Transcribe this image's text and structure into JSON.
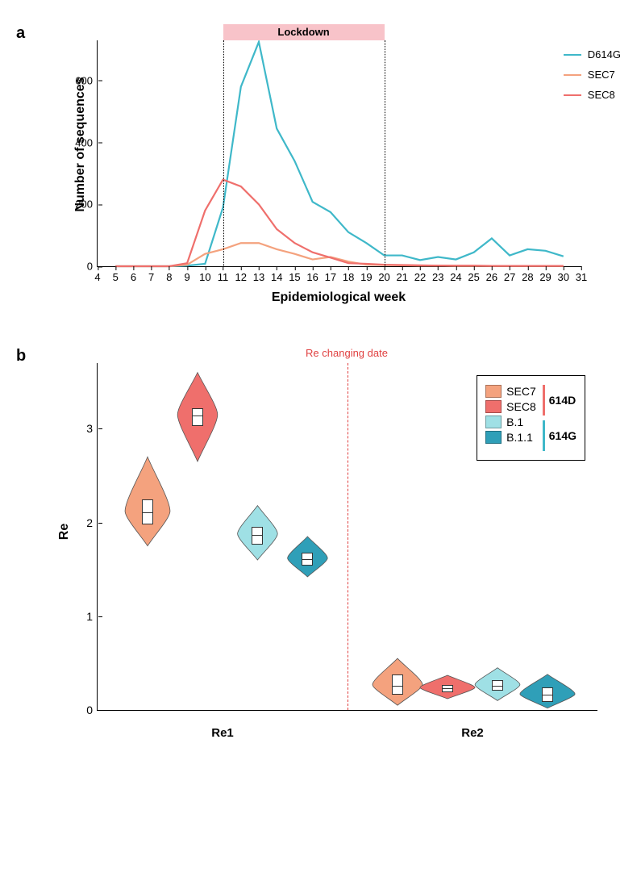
{
  "panelA": {
    "label": "a",
    "type": "line",
    "xlabel": "Epidemiological week",
    "ylabel": "Number of sequences",
    "xlim": [
      4,
      31
    ],
    "ylim": [
      0,
      730
    ],
    "xticks": [
      4,
      5,
      6,
      7,
      8,
      9,
      10,
      11,
      12,
      13,
      14,
      15,
      16,
      17,
      18,
      19,
      20,
      21,
      22,
      23,
      24,
      25,
      26,
      27,
      28,
      29,
      30,
      31
    ],
    "yticks": [
      0,
      200,
      400,
      600
    ],
    "lockdown": {
      "label": "Lockdown",
      "start": 11,
      "end": 20,
      "color": "#f8c3c9"
    },
    "vlines": [
      11,
      20
    ],
    "background_color": "#ffffff",
    "line_width": 2.2,
    "series": [
      {
        "name": "D614G",
        "color": "#3fb8c9",
        "x": [
          5,
          6,
          7,
          8,
          9,
          10,
          11,
          12,
          13,
          14,
          15,
          16,
          17,
          18,
          19,
          20,
          21,
          22,
          23,
          24,
          25,
          26,
          27,
          28,
          29,
          30
        ],
        "y": [
          0,
          0,
          0,
          0,
          2,
          8,
          190,
          580,
          725,
          445,
          340,
          208,
          175,
          110,
          75,
          35,
          35,
          20,
          30,
          22,
          45,
          90,
          35,
          55,
          50,
          32
        ]
      },
      {
        "name": "SEC7",
        "color": "#f4a27e",
        "x": [
          5,
          6,
          7,
          8,
          9,
          10,
          11,
          12,
          13,
          14,
          15,
          16,
          17,
          18,
          19,
          20,
          21,
          22,
          23,
          24,
          25,
          26,
          27,
          28,
          29,
          30
        ],
        "y": [
          0,
          0,
          0,
          0,
          5,
          40,
          55,
          75,
          75,
          55,
          40,
          22,
          30,
          15,
          5,
          4,
          3,
          2,
          2,
          1,
          1,
          1,
          1,
          1,
          1,
          1
        ]
      },
      {
        "name": "SEC8",
        "color": "#ef6f6c",
        "x": [
          5,
          6,
          7,
          8,
          9,
          10,
          11,
          12,
          13,
          14,
          15,
          16,
          17,
          18,
          19,
          20,
          21,
          22,
          23,
          24,
          25,
          26,
          27,
          28,
          29,
          30
        ],
        "y": [
          0,
          0,
          0,
          0,
          10,
          180,
          280,
          258,
          200,
          120,
          75,
          45,
          28,
          10,
          8,
          5,
          4,
          3,
          2,
          2,
          2,
          1,
          1,
          1,
          1,
          1
        ]
      }
    ]
  },
  "panelB": {
    "label": "b",
    "type": "violin",
    "xlabel_left": "Re1",
    "xlabel_right": "Re2",
    "ylabel": "Re",
    "ylim": [
      0,
      3.7
    ],
    "yticks": [
      0,
      1,
      2,
      3
    ],
    "changing_date_label": "Re changing date",
    "divider_x": 0.5,
    "divider_color": "#e04040",
    "legend": {
      "items": [
        {
          "label": "SEC7",
          "color": "#f4a27e"
        },
        {
          "label": "SEC8",
          "color": "#ef6f6c"
        },
        {
          "label": "B.1",
          "color": "#9fe0e5"
        },
        {
          "label": "B.1.1",
          "color": "#2f9fb8"
        }
      ],
      "groups": [
        {
          "label": "614D",
          "bar_color": "#ef6f6c"
        },
        {
          "label": "614G",
          "bar_color": "#3fb8c9"
        }
      ]
    },
    "groups": [
      {
        "name": "Re1",
        "x_center": 0.25,
        "violins": [
          {
            "label": "SEC7",
            "color": "#f4a27e",
            "x": 0.1,
            "median": 2.12,
            "q1": 2.0,
            "q3": 2.25,
            "min": 1.75,
            "max": 2.7,
            "width": 0.045
          },
          {
            "label": "SEC8",
            "color": "#ef6f6c",
            "x": 0.2,
            "median": 3.15,
            "q1": 3.05,
            "q3": 3.22,
            "min": 2.65,
            "max": 3.6,
            "width": 0.04
          },
          {
            "label": "B.1",
            "color": "#9fe0e5",
            "x": 0.32,
            "median": 1.88,
            "q1": 1.78,
            "q3": 1.95,
            "min": 1.6,
            "max": 2.18,
            "width": 0.04
          },
          {
            "label": "B.1.1",
            "color": "#2f9fb8",
            "x": 0.42,
            "median": 1.62,
            "q1": 1.56,
            "q3": 1.68,
            "min": 1.42,
            "max": 1.85,
            "width": 0.04
          }
        ]
      },
      {
        "name": "Re2",
        "x_center": 0.75,
        "violins": [
          {
            "label": "SEC7",
            "color": "#f4a27e",
            "x": 0.6,
            "median": 0.27,
            "q1": 0.18,
            "q3": 0.38,
            "min": 0.05,
            "max": 0.55,
            "width": 0.05
          },
          {
            "label": "SEC8",
            "color": "#ef6f6c",
            "x": 0.7,
            "median": 0.24,
            "q1": 0.21,
            "q3": 0.27,
            "min": 0.12,
            "max": 0.37,
            "width": 0.055
          },
          {
            "label": "B.1",
            "color": "#9fe0e5",
            "x": 0.8,
            "median": 0.27,
            "q1": 0.22,
            "q3": 0.32,
            "min": 0.1,
            "max": 0.45,
            "width": 0.045
          },
          {
            "label": "B.1.1",
            "color": "#2f9fb8",
            "x": 0.9,
            "median": 0.17,
            "q1": 0.1,
            "q3": 0.24,
            "min": 0.02,
            "max": 0.38,
            "width": 0.055
          }
        ]
      }
    ]
  }
}
